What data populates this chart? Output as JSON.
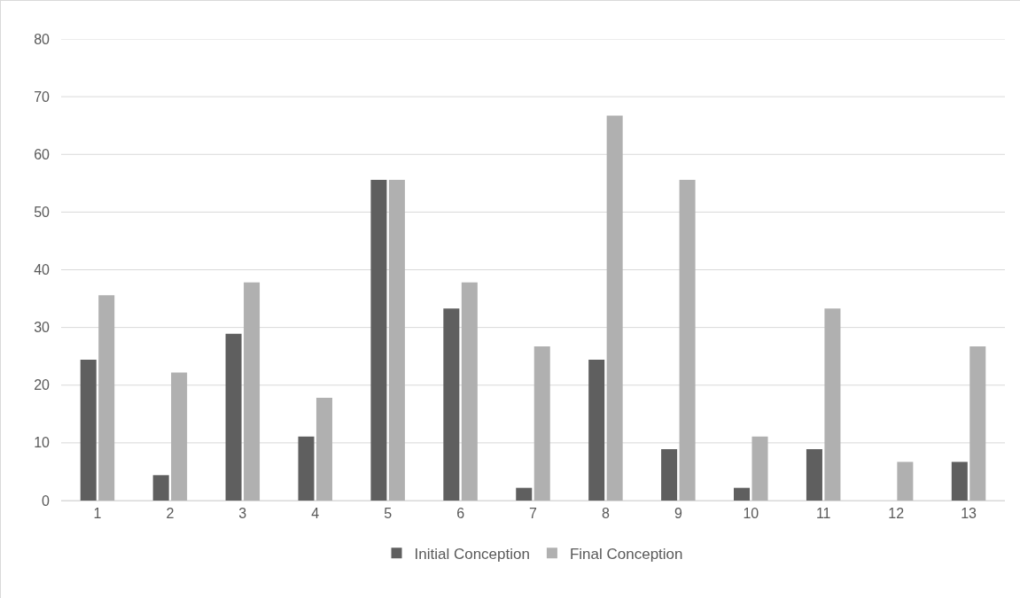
{
  "chart_data": {
    "type": "bar",
    "x": [
      1,
      2,
      3,
      4,
      5,
      6,
      7,
      8,
      9,
      10,
      11,
      12,
      13
    ],
    "series": [
      {
        "name": "Initial Conception",
        "color": "#5f5f5f",
        "values": [
          24.4,
          4.4,
          28.9,
          11.1,
          55.6,
          33.3,
          2.2,
          24.4,
          8.9,
          2.2,
          8.9,
          0,
          6.7
        ]
      },
      {
        "name": "Final Conception",
        "color": "#b0b0b0",
        "values": [
          35.6,
          22.2,
          37.8,
          17.8,
          55.6,
          37.8,
          26.7,
          66.7,
          55.6,
          11.1,
          33.3,
          6.7,
          26.7
        ]
      }
    ],
    "xlim": [
      0.5,
      13.5
    ],
    "xticks": [
      1,
      2,
      3,
      4,
      5,
      6,
      7,
      8,
      9,
      10,
      11,
      12,
      13
    ],
    "ylim": [
      0,
      80
    ],
    "yticks": [
      0,
      10,
      20,
      30,
      40,
      50,
      60,
      70,
      80
    ],
    "grid": "y",
    "legend": "bottom"
  }
}
